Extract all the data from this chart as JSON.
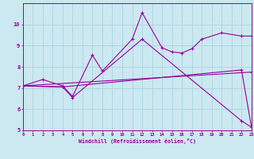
{
  "xlabel": "Windchill (Refroidissement éolien,°C)",
  "background_color": "#cce8f0",
  "line_color": "#990099",
  "grid_color": "#aad4e0",
  "xlim": [
    0,
    23
  ],
  "ylim": [
    5,
    11
  ],
  "yticks": [
    5,
    6,
    7,
    8,
    9,
    10
  ],
  "xticks": [
    0,
    1,
    2,
    3,
    4,
    5,
    6,
    7,
    8,
    9,
    10,
    11,
    12,
    13,
    14,
    15,
    16,
    17,
    18,
    19,
    20,
    21,
    22,
    23
  ],
  "series": [
    {
      "x": [
        0,
        2,
        4,
        5,
        7,
        8,
        11,
        12,
        14,
        15,
        16,
        17,
        18,
        20,
        22,
        23
      ],
      "y": [
        7.1,
        7.4,
        7.1,
        6.6,
        8.55,
        7.8,
        9.3,
        10.55,
        8.9,
        8.7,
        8.65,
        8.85,
        9.3,
        9.6,
        9.45,
        9.45
      ]
    },
    {
      "x": [
        0,
        4,
        5,
        12,
        22,
        23
      ],
      "y": [
        7.1,
        7.05,
        6.55,
        9.3,
        5.45,
        5.15
      ]
    },
    {
      "x": [
        0,
        23
      ],
      "y": [
        7.1,
        7.75
      ]
    },
    {
      "x": [
        0,
        4,
        22,
        23
      ],
      "y": [
        7.1,
        7.05,
        7.85,
        5.15
      ]
    }
  ]
}
